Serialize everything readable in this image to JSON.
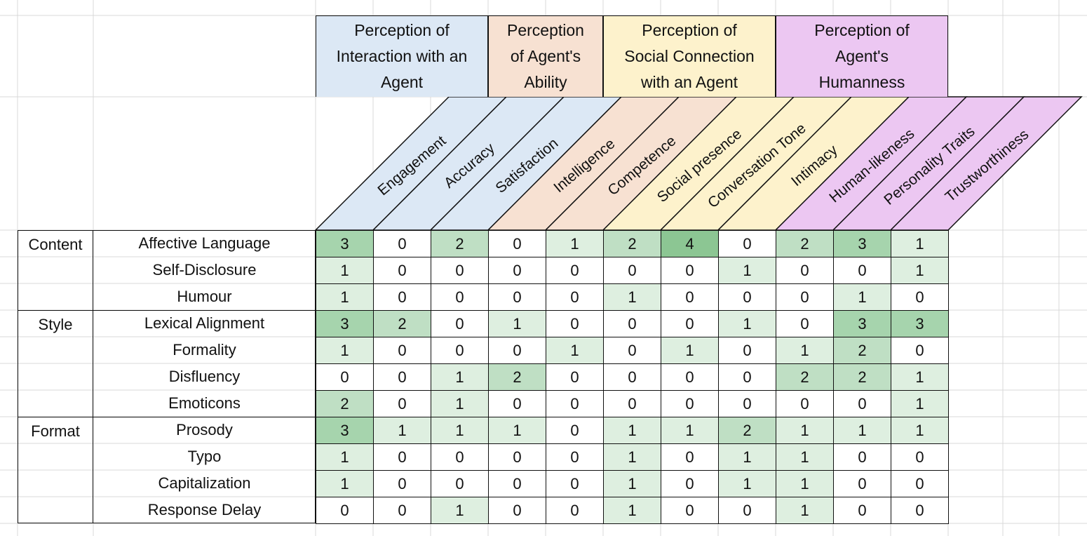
{
  "chart_data": {
    "type": "table",
    "column_groups": [
      {
        "label": "Perception of\nInteraction with an\nAgent",
        "color": "#dce8f5",
        "span": 3
      },
      {
        "label": "Perception\nof Agent's\nAbility",
        "color": "#f7e1d2",
        "span": 2
      },
      {
        "label": "Perception of\nSocial Connection\nwith an Agent",
        "color": "#fdf2cc",
        "span": 3
      },
      {
        "label": "Perception of\nAgent's\nHumanness",
        "color": "#ecc7f2",
        "span": 3
      }
    ],
    "columns": [
      "Engagement",
      "Accuracy",
      "Satisfaction",
      "Intelligence",
      "Competence",
      "Social presence",
      "Conversation Tone",
      "Intimacy",
      "Human-likeness",
      "Personality Traits",
      "Trustworthiness"
    ],
    "row_groups": [
      {
        "label": "Content",
        "rows": [
          "Affective Language",
          "Self-Disclosure",
          "Humour"
        ]
      },
      {
        "label": "Style",
        "rows": [
          "Lexical Alignment",
          "Formality",
          "Disfluency",
          "Emoticons"
        ]
      },
      {
        "label": "Format",
        "rows": [
          "Prosody",
          "Typo",
          "Capitalization",
          "Response Delay"
        ]
      }
    ],
    "values": [
      [
        3,
        0,
        2,
        0,
        1,
        2,
        4,
        0,
        2,
        3,
        1
      ],
      [
        1,
        0,
        0,
        0,
        0,
        0,
        0,
        1,
        0,
        0,
        1
      ],
      [
        1,
        0,
        0,
        0,
        0,
        1,
        0,
        0,
        0,
        1,
        0
      ],
      [
        3,
        2,
        0,
        1,
        0,
        0,
        0,
        1,
        0,
        3,
        3
      ],
      [
        1,
        0,
        0,
        0,
        1,
        0,
        1,
        0,
        1,
        2,
        0
      ],
      [
        0,
        0,
        1,
        2,
        0,
        0,
        0,
        0,
        2,
        2,
        1
      ],
      [
        2,
        0,
        1,
        0,
        0,
        0,
        0,
        0,
        0,
        0,
        1
      ],
      [
        3,
        1,
        1,
        1,
        0,
        1,
        1,
        2,
        1,
        1,
        1
      ],
      [
        1,
        0,
        0,
        0,
        0,
        1,
        0,
        1,
        1,
        0,
        0
      ],
      [
        1,
        0,
        0,
        0,
        0,
        1,
        0,
        1,
        1,
        0,
        0
      ],
      [
        0,
        0,
        1,
        0,
        0,
        1,
        0,
        0,
        1,
        0,
        0
      ]
    ],
    "heat_colors": {
      "0": "#ffffff",
      "1": "#deefe0",
      "2": "#bfdfc4",
      "3": "#a6d4ad",
      "4": "#8cc693"
    }
  }
}
